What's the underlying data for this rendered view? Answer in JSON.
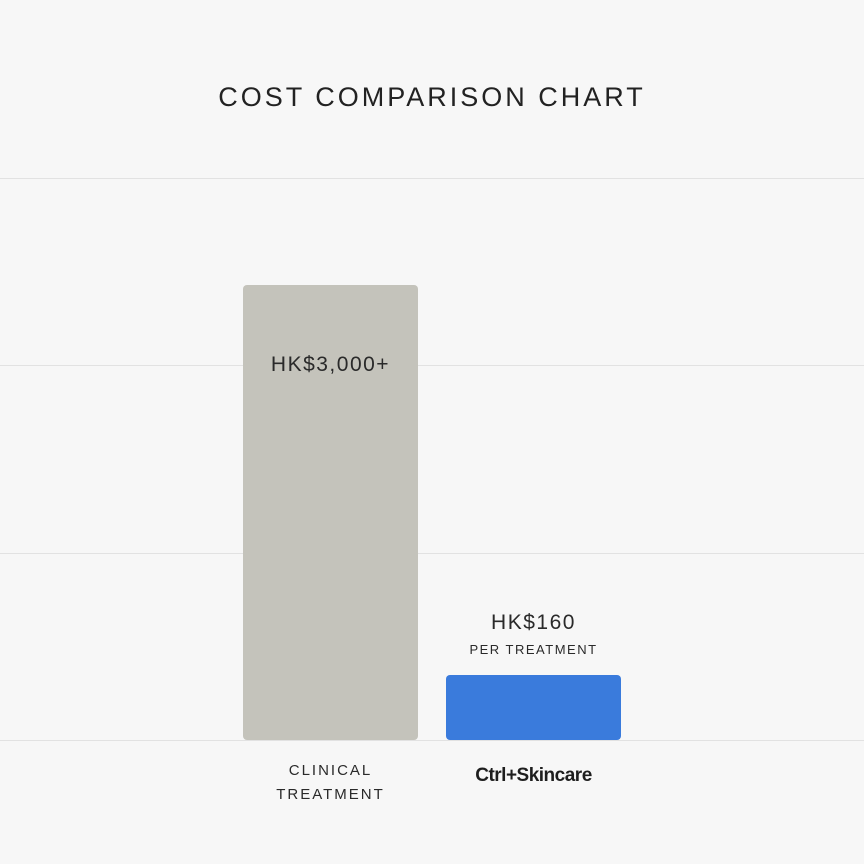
{
  "chart_data": {
    "type": "bar",
    "title": "COST COMPARISON CHART",
    "categories": [
      "CLINICAL TREATMENT",
      "Ctrl+Skincare"
    ],
    "values": [
      3000,
      160
    ],
    "value_labels": [
      "HK$3,000+",
      "HK$160"
    ],
    "value_sublabels": [
      "",
      "PER TREATMENT"
    ],
    "bar_colors": [
      "#c4c3bb",
      "#3a7bdc"
    ],
    "grid": true,
    "gridline_color": "#e2e2e2",
    "legend": "none"
  }
}
